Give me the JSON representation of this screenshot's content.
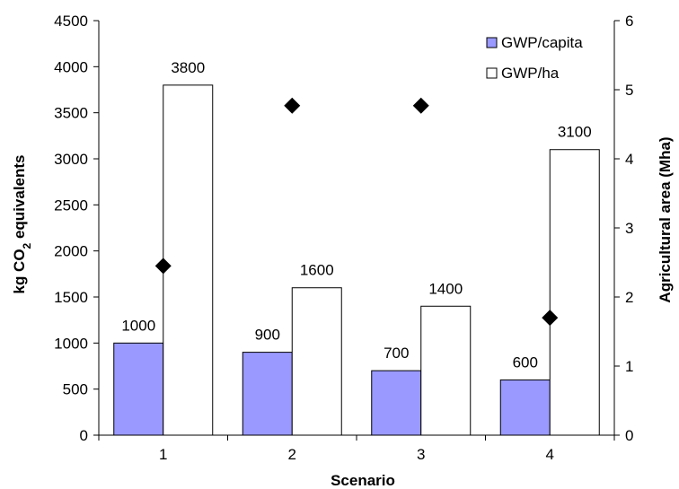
{
  "chart_data": {
    "type": "bar",
    "categories": [
      "1",
      "2",
      "3",
      "4"
    ],
    "series": [
      {
        "name": "GWP/capita",
        "values": [
          1000,
          900,
          700,
          600
        ],
        "color": "#9999ff"
      },
      {
        "name": "GWP/ha",
        "values": [
          3800,
          1600,
          1400,
          3100
        ],
        "color": "#ffffff"
      }
    ],
    "secondary_series": {
      "type": "scatter",
      "values": [
        2.45,
        4.77,
        4.77,
        1.7
      ],
      "marker": "diamond",
      "color": "#000000"
    },
    "xlabel": "Scenario",
    "ylabel_prefix": "kg CO",
    "ylabel_subscript": "2",
    "ylabel_suffix": " equivalents",
    "y2label": "Agricultural area (Mha)",
    "ylim": [
      0,
      4500
    ],
    "yticks": [
      "0",
      "500",
      "1000",
      "1500",
      "2000",
      "2500",
      "3000",
      "3500",
      "4000",
      "4500"
    ],
    "y2lim": [
      0,
      6
    ],
    "y2ticks": [
      "0",
      "1",
      "2",
      "3",
      "4",
      "5",
      "6"
    ],
    "legend": "top-right",
    "grid": false
  }
}
